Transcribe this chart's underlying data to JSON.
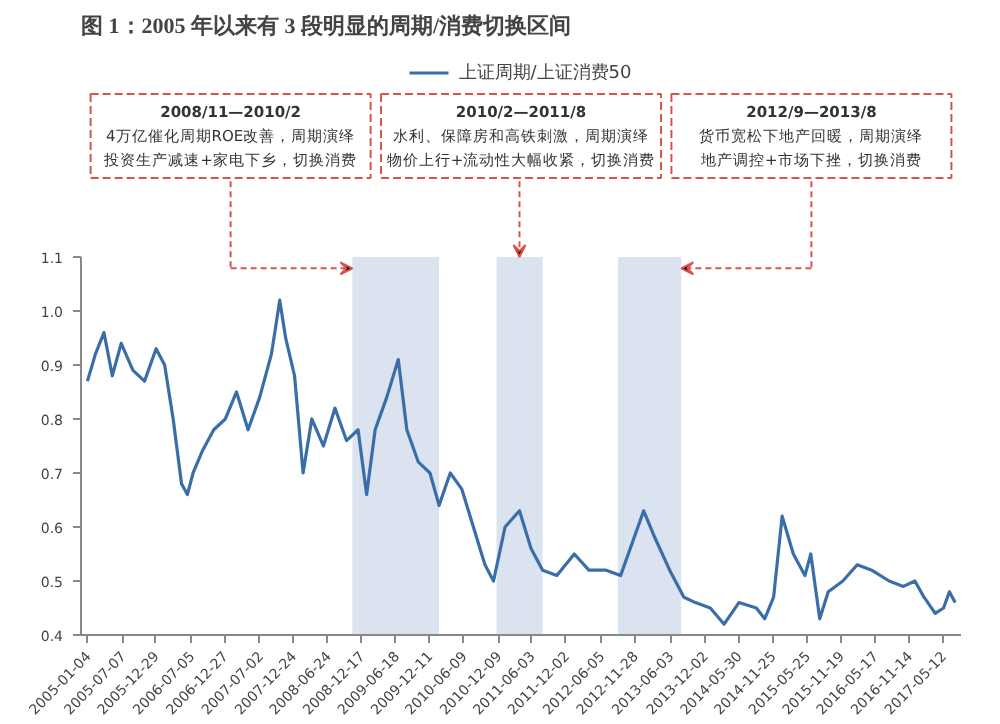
{
  "chart_data": {
    "type": "line",
    "title": "图 1：2005 年以来有 3 段明显的周期/消费切换区间",
    "x": [
      "2005-01-04",
      "2005-02-15",
      "2005-04-01",
      "2005-05-15",
      "2005-07-01",
      "2005-09-01",
      "2005-11-01",
      "2006-01-01",
      "2006-02-15",
      "2006-04-01",
      "2006-05-15",
      "2006-06-15",
      "2006-07-15",
      "2006-09-01",
      "2006-11-01",
      "2007-01-01",
      "2007-03-01",
      "2007-05-01",
      "2007-07-01",
      "2007-09-01",
      "2007-10-15",
      "2007-11-15",
      "2008-01-01",
      "2008-02-15",
      "2008-04-01",
      "2008-06-01",
      "2008-08-01",
      "2008-10-01",
      "2008-12-01",
      "2009-01-15",
      "2009-03-01",
      "2009-05-01",
      "2009-07-01",
      "2009-08-15",
      "2009-10-15",
      "2009-12-15",
      "2010-02-01",
      "2010-04-01",
      "2010-06-01",
      "2010-08-01",
      "2010-10-01",
      "2010-11-15",
      "2011-01-15",
      "2011-04-01",
      "2011-06-01",
      "2011-08-01",
      "2011-10-15",
      "2012-01-15",
      "2012-04-01",
      "2012-07-01",
      "2012-09-15",
      "2013-01-15",
      "2013-03-15",
      "2013-06-01",
      "2013-08-15",
      "2013-10-15",
      "2014-01-01",
      "2014-03-15",
      "2014-06-01",
      "2014-09-01",
      "2014-10-15",
      "2014-12-01",
      "2015-01-15",
      "2015-03-15",
      "2015-05-15",
      "2015-06-15",
      "2015-08-01",
      "2015-09-15",
      "2015-12-01",
      "2016-02-15",
      "2016-05-01",
      "2016-08-01",
      "2016-10-15",
      "2016-12-15",
      "2017-02-01",
      "2017-04-01",
      "2017-05-15",
      "2017-06-15",
      "2017-07-15"
    ],
    "series": [
      {
        "name": "上证周期/上证消费50",
        "color": "#3b6ea8",
        "values": [
          0.87,
          0.92,
          0.96,
          0.88,
          0.94,
          0.89,
          0.87,
          0.93,
          0.9,
          0.8,
          0.68,
          0.66,
          0.7,
          0.74,
          0.78,
          0.8,
          0.85,
          0.78,
          0.84,
          0.92,
          1.02,
          0.95,
          0.88,
          0.7,
          0.8,
          0.75,
          0.82,
          0.76,
          0.78,
          0.66,
          0.78,
          0.84,
          0.91,
          0.78,
          0.72,
          0.7,
          0.64,
          0.7,
          0.67,
          0.6,
          0.53,
          0.5,
          0.6,
          0.63,
          0.56,
          0.52,
          0.51,
          0.55,
          0.52,
          0.52,
          0.51,
          0.63,
          0.58,
          0.52,
          0.47,
          0.46,
          0.45,
          0.42,
          0.46,
          0.45,
          0.43,
          0.47,
          0.62,
          0.55,
          0.51,
          0.55,
          0.43,
          0.48,
          0.5,
          0.53,
          0.52,
          0.5,
          0.49,
          0.5,
          0.47,
          0.44,
          0.45,
          0.48,
          0.46
        ]
      }
    ],
    "xlim": [
      "2004-12-01",
      "2017-08-15"
    ],
    "xticks": [
      "2005-01-04",
      "2005-07-07",
      "2005-12-29",
      "2006-07-05",
      "2006-12-27",
      "2007-07-02",
      "2007-12-24",
      "2008-06-24",
      "2008-12-17",
      "2009-06-18",
      "2009-12-11",
      "2010-06-09",
      "2010-12-09",
      "2011-06-03",
      "2011-12-02",
      "2012-06-05",
      "2012-11-28",
      "2013-06-03",
      "2013-12-02",
      "2014-05-30",
      "2014-11-25",
      "2015-05-25",
      "2015-11-19",
      "2016-05-17",
      "2016-11-14",
      "2017-05-12"
    ],
    "ylim": [
      0.4,
      1.1
    ],
    "yticks": [
      0.4,
      0.5,
      0.6,
      0.7,
      0.8,
      0.9,
      {
        "value": 1.0,
        "label": "1.0"
      },
      1.1
    ],
    "bands": [
      {
        "axis": "x",
        "from": "2008-11",
        "to": "2010-02",
        "color": "#dbe3f0"
      },
      {
        "axis": "x",
        "from": "2010-12",
        "to": "2011-08",
        "color": "#dbe3f0"
      },
      {
        "axis": "x",
        "from": "2012-09",
        "to": "2013-08",
        "color": "#dbe3f0"
      }
    ],
    "annotations": [
      "2008/11—2010/2\n4万亿催化周期ROE改善，周期演绎投资生产减速+家电下乡，切换消费",
      {
        "text": "2010/2—2011/8\n水利、保障房和高铁刺激，周期演绎物价上行+流动性大幅收紧，切换消费",
        "x": "2011-04",
        "y": 1.1
      },
      "2012/9—2013/8\n货币宽松下地产回暖，周期演绎地产调控+市场下挫，切换消费"
    ],
    "grid": false,
    "legend": "top",
    "line_style": "solid"
  }
}
